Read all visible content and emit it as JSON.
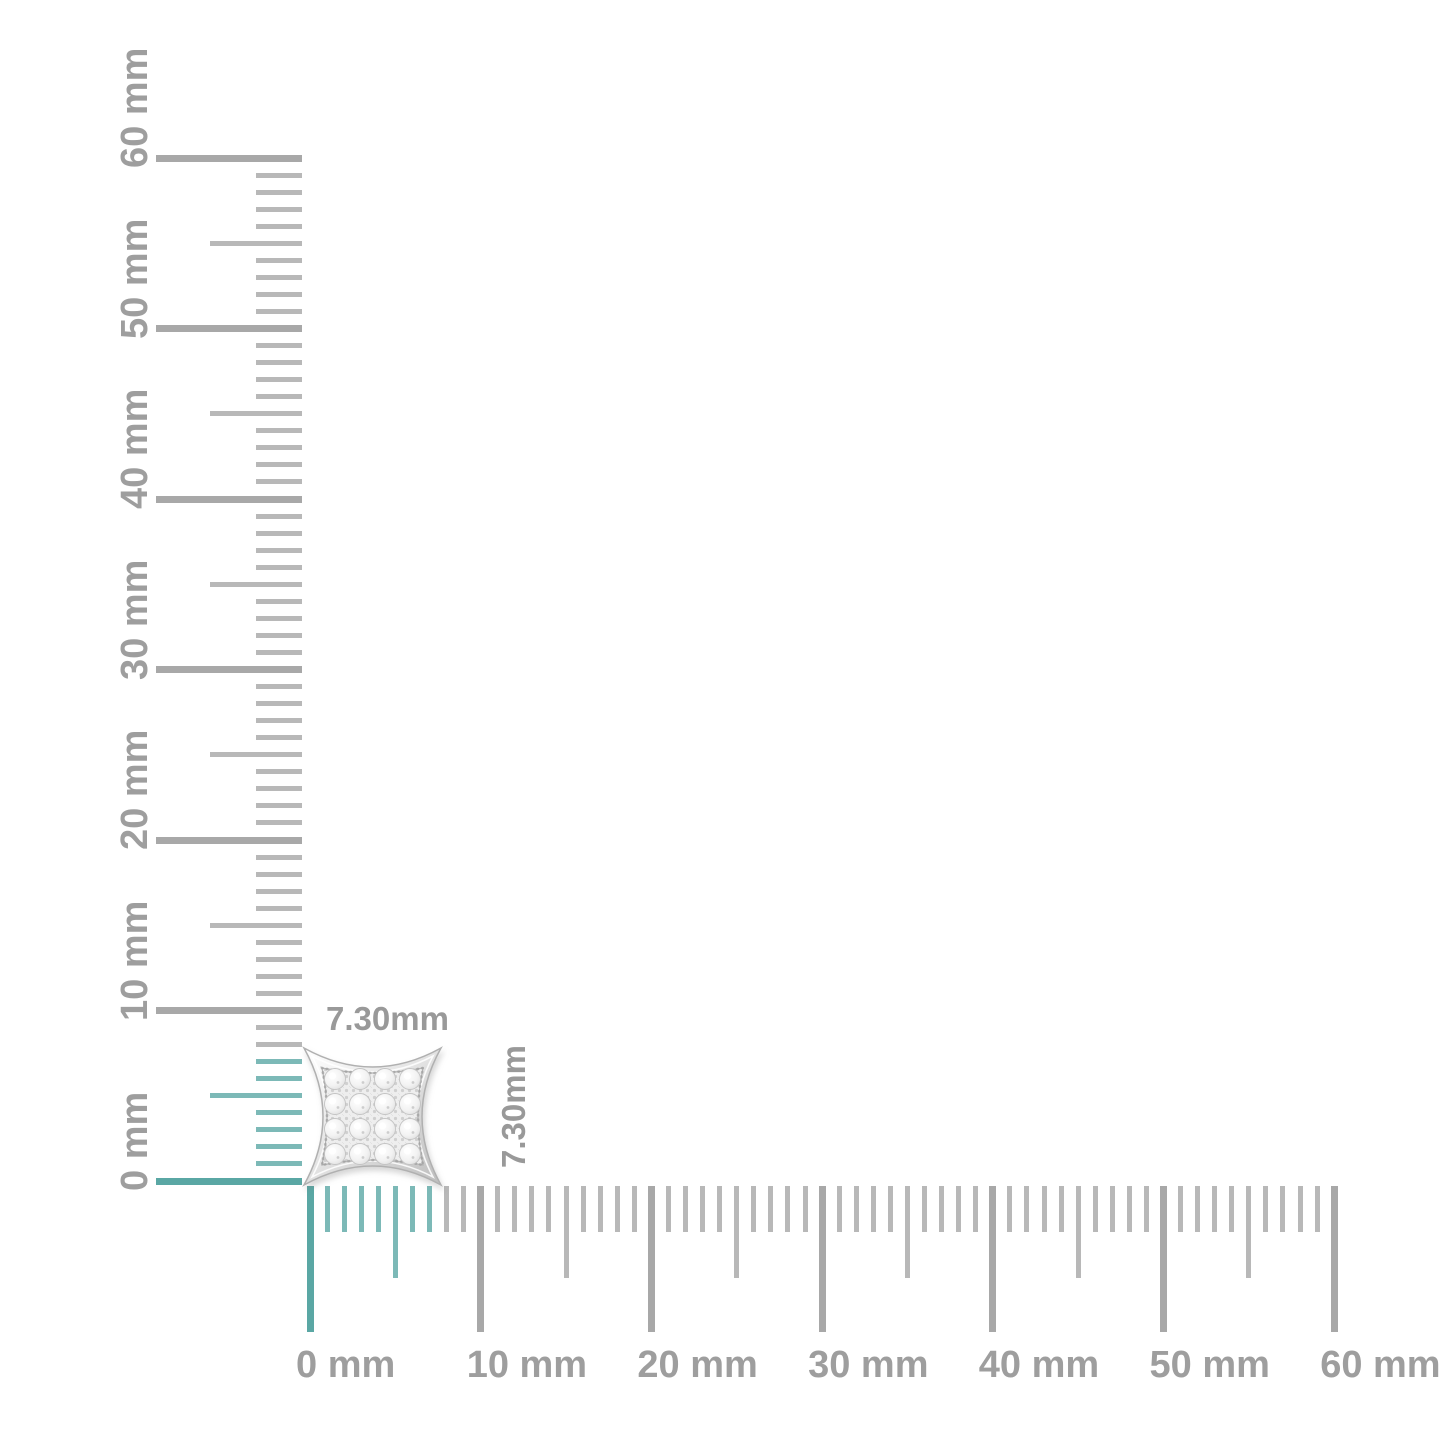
{
  "unit": "mm",
  "colors": {
    "background": "#ffffff",
    "tick_gray_minor": "#b8b8b8",
    "tick_gray_major": "#a8a8a8",
    "tick_teal_minor": "#7cb9b7",
    "tick_teal_major": "#5aa7a4",
    "ruler_label_gray": "#9e9e9e",
    "dimension_label_gray": "#999999"
  },
  "horizontal_ruler": {
    "labels": [
      "0 mm",
      "10 mm",
      "20 mm",
      "30 mm",
      "40 mm",
      "50 mm",
      "60 mm"
    ],
    "range_mm": [
      0,
      60
    ],
    "minor_step_mm": 1,
    "mid_step_mm": 5,
    "major_step_mm": 10,
    "highlight_extent_mm": 7.3
  },
  "vertical_ruler": {
    "labels": [
      "0 mm",
      "10 mm",
      "20 mm",
      "30 mm",
      "40 mm",
      "50 mm",
      "60 mm"
    ],
    "range_mm": [
      0,
      60
    ],
    "minor_step_mm": 1,
    "mid_step_mm": 5,
    "major_step_mm": 10,
    "highlight_extent_mm": 7.3
  },
  "product": {
    "width_label": "7.30mm",
    "height_label": "7.30mm"
  }
}
